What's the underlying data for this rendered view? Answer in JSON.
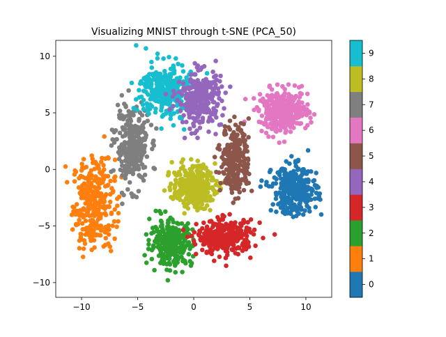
{
  "chart_data": {
    "type": "scatter",
    "title": "Visualizing MNIST through t-SNE (PCA_50)",
    "xlabel": "",
    "ylabel": "",
    "xlim": [
      -12.3,
      12.3
    ],
    "ylim": [
      -11.3,
      11.4
    ],
    "xticks": [
      -10,
      -5,
      0,
      5,
      10
    ],
    "yticks": [
      -10,
      -5,
      0,
      5,
      10
    ],
    "xtick_labels": [
      "−10",
      "−5",
      "0",
      "5",
      "10"
    ],
    "ytick_labels": [
      "−10",
      "−5",
      "0",
      "5",
      "10"
    ],
    "grid": false,
    "colorbar": {
      "labels": [
        "0",
        "1",
        "2",
        "3",
        "4",
        "5",
        "6",
        "7",
        "8",
        "9"
      ],
      "colors": [
        "#1f77b4",
        "#ff7f0e",
        "#2ca02c",
        "#d62728",
        "#9467bd",
        "#8c564b",
        "#e377c2",
        "#7f7f7f",
        "#bcbd22",
        "#17becf"
      ]
    },
    "clusters": [
      {
        "label": "0",
        "color": "#1f77b4",
        "center": [
          9.0,
          -1.8
        ],
        "spread": [
          1.6,
          1.7
        ],
        "count": 340
      },
      {
        "label": "1",
        "color": "#ff7f0e",
        "center": [
          -8.9,
          -3.0
        ],
        "spread": [
          1.5,
          3.2
        ],
        "count": 320
      },
      {
        "label": "2",
        "color": "#2ca02c",
        "center": [
          -2.0,
          -6.5
        ],
        "spread": [
          1.5,
          1.6
        ],
        "count": 300
      },
      {
        "label": "3",
        "color": "#d62728",
        "center": [
          2.8,
          -6.0
        ],
        "spread": [
          2.0,
          1.2
        ],
        "count": 320
      },
      {
        "label": "4",
        "color": "#9467bd",
        "center": [
          0.5,
          6.2
        ],
        "spread": [
          1.6,
          2.0
        ],
        "count": 300
      },
      {
        "label": "5",
        "color": "#8c564b",
        "center": [
          3.7,
          0.8
        ],
        "spread": [
          1.0,
          2.5
        ],
        "count": 260
      },
      {
        "label": "6",
        "color": "#e377c2",
        "center": [
          8.0,
          5.1
        ],
        "spread": [
          1.8,
          1.5
        ],
        "count": 320
      },
      {
        "label": "7",
        "color": "#7f7f7f",
        "center": [
          -5.5,
          2.0
        ],
        "spread": [
          1.2,
          2.7
        ],
        "count": 300
      },
      {
        "label": "8",
        "color": "#bcbd22",
        "center": [
          0.0,
          -1.5
        ],
        "spread": [
          1.5,
          1.5
        ],
        "count": 300
      },
      {
        "label": "9",
        "color": "#17becf",
        "center": [
          -2.5,
          7.0
        ],
        "spread": [
          1.8,
          2.0
        ],
        "count": 300
      }
    ]
  }
}
